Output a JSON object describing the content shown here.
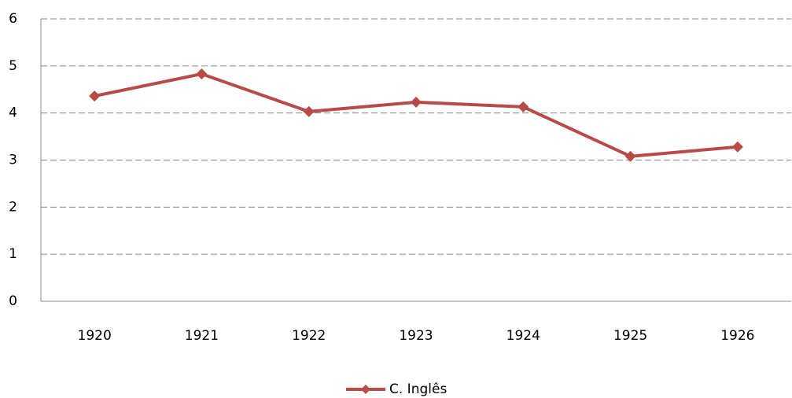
{
  "chart_data": {
    "type": "line",
    "categories": [
      "1920",
      "1921",
      "1922",
      "1923",
      "1924",
      "1925",
      "1926"
    ],
    "series": [
      {
        "name": "C. Inglês",
        "color": "#b84a47",
        "values": [
          4.36,
          4.83,
          4.03,
          4.23,
          4.13,
          3.08,
          3.28
        ]
      }
    ],
    "ylim": [
      0,
      6
    ],
    "yticks": [
      0,
      1,
      2,
      3,
      4,
      5,
      6
    ],
    "grid": true,
    "legend": "bottom"
  }
}
